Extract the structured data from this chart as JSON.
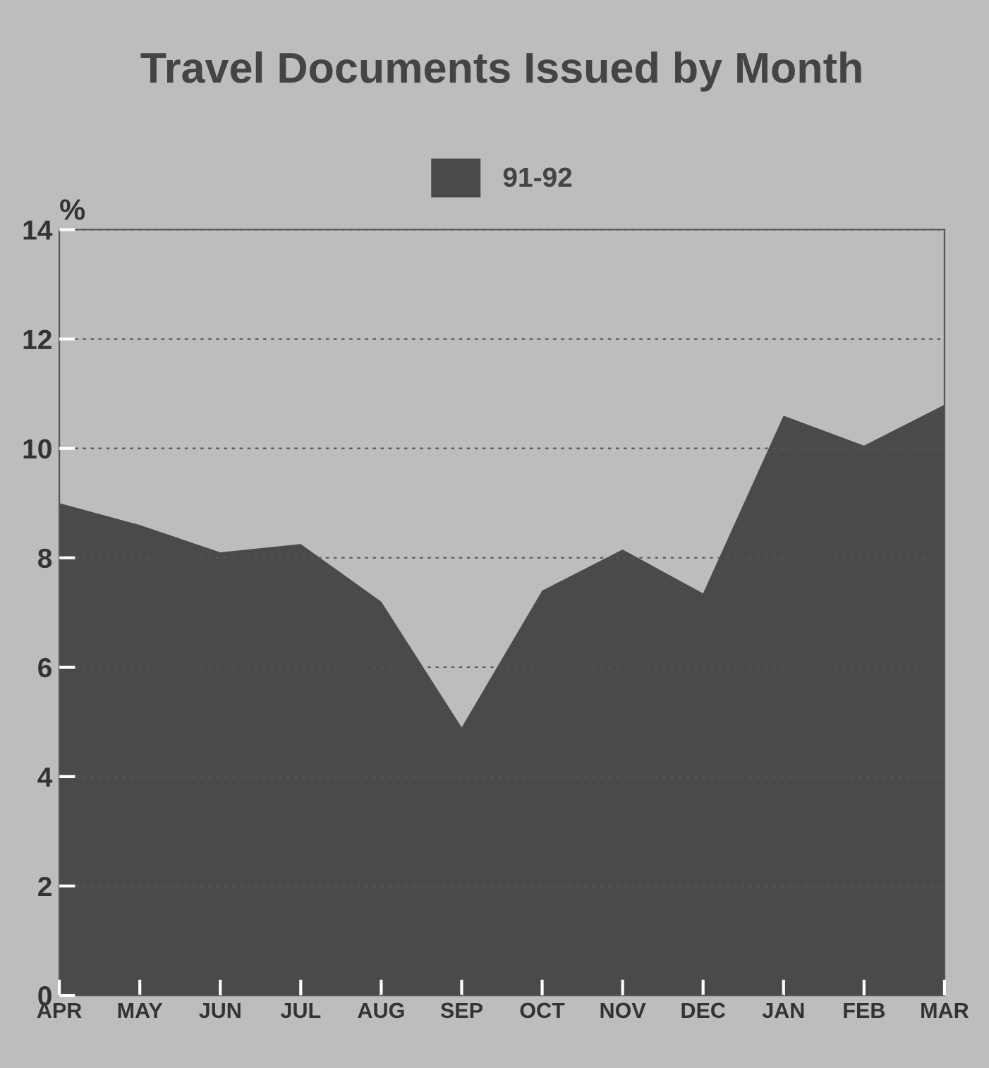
{
  "chart_data": {
    "type": "area",
    "title": "Travel Documents Issued by Month",
    "ylabel": "%",
    "categories": [
      "APR",
      "MAY",
      "JUN",
      "JUL",
      "AUG",
      "SEP",
      "OCT",
      "NOV",
      "DEC",
      "JAN",
      "FEB",
      "MAR"
    ],
    "series": [
      {
        "name": "91-92",
        "color": "#4a4a4a",
        "values": [
          9.0,
          8.6,
          8.1,
          8.25,
          7.2,
          4.9,
          7.4,
          8.15,
          7.35,
          10.6,
          10.05,
          10.8
        ]
      }
    ],
    "ylim": [
      0,
      14
    ],
    "yticks": [
      0,
      2,
      4,
      6,
      8,
      10,
      12,
      14
    ],
    "grid": "y",
    "legend": "top"
  }
}
